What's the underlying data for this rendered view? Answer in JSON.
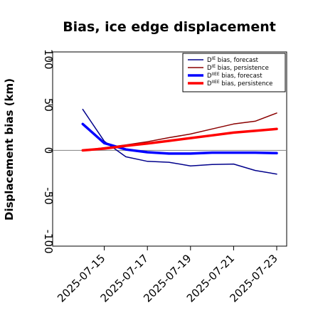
{
  "chart_data": {
    "type": "line",
    "title": "Bias, ice edge displacement",
    "ylabel": "Displacement bias (km)",
    "xlabel": "",
    "ylim": [
      -105,
      108
    ],
    "xlim": [
      "2025-07-13",
      "2025-07-23"
    ],
    "yticks": [
      -100,
      -50,
      0,
      50,
      100
    ],
    "yticklabels": [
      "-100",
      "-50",
      "0",
      "50",
      "100"
    ],
    "xticks": [
      "2025-07-15",
      "2025-07-17",
      "2025-07-19",
      "2025-07-21",
      "2025-07-23"
    ],
    "highlighted_xtick": "2025-07-15",
    "highlight_color": "#228B22",
    "grid": false,
    "legend_position": "top-right",
    "zero_line_color": "#808080",
    "series": [
      {
        "name": "Dᴵᴱ bias, forecast",
        "legend_base": "D",
        "legend_sup": "IE",
        "legend_rest": " bias, forecast",
        "color": "#00008B",
        "width": 1.5,
        "x": [
          "2025-07-14",
          "2025-07-15",
          "2025-07-16",
          "2025-07-17",
          "2025-07-18",
          "2025-07-19",
          "2025-07-20",
          "2025-07-21",
          "2025-07-22",
          "2025-07-23"
        ],
        "y": [
          45,
          10,
          -7,
          -12,
          -13,
          -17,
          -15.5,
          -15,
          -22,
          -26
        ]
      },
      {
        "name": "Dᴵᴱ bias, persistence",
        "legend_base": "D",
        "legend_sup": "IE",
        "legend_rest": " bias, persistence",
        "color": "#8B0000",
        "width": 1.5,
        "x": [
          "2025-07-14",
          "2025-07-15",
          "2025-07-16",
          "2025-07-17",
          "2025-07-18",
          "2025-07-19",
          "2025-07-20",
          "2025-07-21",
          "2025-07-22",
          "2025-07-23"
        ],
        "y": [
          0,
          3,
          6,
          9.5,
          14,
          18,
          23.5,
          29,
          32,
          41
        ]
      },
      {
        "name": "Dᴵᴵᴱᴱ bias, forecast",
        "legend_base": "D",
        "legend_sup": "IIEE",
        "legend_rest": " bias, forecast",
        "color": "#0000FF",
        "width": 3.5,
        "x": [
          "2025-07-14",
          "2025-07-15",
          "2025-07-16",
          "2025-07-17",
          "2025-07-18",
          "2025-07-19",
          "2025-07-20",
          "2025-07-21",
          "2025-07-22",
          "2025-07-23"
        ],
        "y": [
          29,
          8,
          1,
          -2,
          -3.5,
          -3.5,
          -2.5,
          -2.5,
          -2.5,
          -3
        ]
      },
      {
        "name": "Dᴵᴵᴱᴱ bias, persistence",
        "legend_base": "D",
        "legend_sup": "IIEE",
        "legend_rest": " bias, persistence",
        "color": "#FF0000",
        "width": 3.5,
        "x": [
          "2025-07-14",
          "2025-07-15",
          "2025-07-16",
          "2025-07-17",
          "2025-07-18",
          "2025-07-19",
          "2025-07-20",
          "2025-07-21",
          "2025-07-22",
          "2025-07-23"
        ],
        "y": [
          0,
          2,
          5,
          7.5,
          10.5,
          13.5,
          16.5,
          19.5,
          21.5,
          23.5
        ]
      }
    ]
  }
}
